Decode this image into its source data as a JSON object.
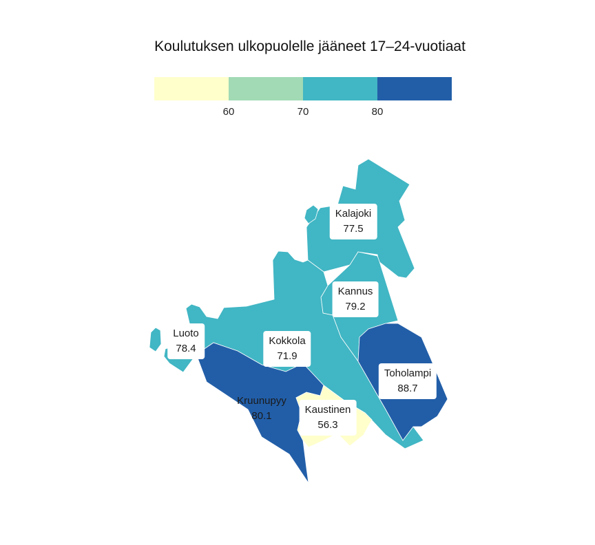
{
  "title": "Koulutuksen ulkopuolelle jääneet 17–24-vuotiaat",
  "legend": {
    "bins": [
      {
        "color": "#ffffcc"
      },
      {
        "color": "#a1dab4"
      },
      {
        "color": "#41b6c4"
      },
      {
        "color": "#225ea8"
      }
    ],
    "ticks": [
      "60",
      "70",
      "80"
    ]
  },
  "regions": [
    {
      "name": "Kalajoki",
      "value": "77.5",
      "color": "#41b6c4"
    },
    {
      "name": "Kannus",
      "value": "79.2",
      "color": "#41b6c4"
    },
    {
      "name": "Luoto",
      "value": "78.4",
      "color": "#41b6c4"
    },
    {
      "name": "Kokkola",
      "value": "71.9",
      "color": "#41b6c4"
    },
    {
      "name": "Toholampi",
      "value": "88.7",
      "color": "#225ea8"
    },
    {
      "name": "Kruunupyy",
      "value": "80.1",
      "color": "#225ea8"
    },
    {
      "name": "Kaustinen",
      "value": "56.3",
      "color": "#ffffcc"
    }
  ]
}
